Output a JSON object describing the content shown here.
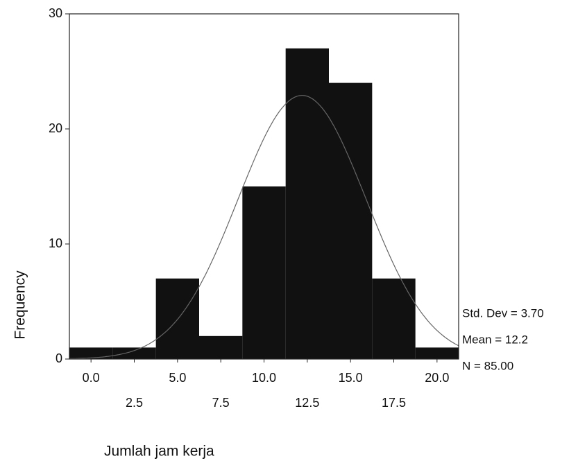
{
  "chart_data": {
    "type": "histogram",
    "x_label": "Jumlah jam kerja",
    "y_label": "Frequency",
    "bins": [
      -1.25,
      1.25,
      3.75,
      6.25,
      8.75,
      11.25,
      13.75,
      16.25,
      18.75,
      21.25
    ],
    "values": [
      1,
      1,
      7,
      2,
      15,
      27,
      24,
      7,
      1
    ],
    "color": "#111111",
    "xlim": [
      -1.25,
      21.25
    ],
    "xticks": [
      {
        "value": 0,
        "label": "0.0"
      },
      2.5,
      {
        "value": 5,
        "label": "5.0"
      },
      7.5,
      {
        "value": 10,
        "label": "10.0"
      },
      12.5,
      {
        "value": 15,
        "label": "15.0"
      },
      17.5,
      {
        "value": 20,
        "label": "20.0"
      }
    ],
    "ylim": [
      0,
      30
    ],
    "yticks": [
      0,
      10,
      20,
      30
    ],
    "fit": {
      "std_dev": 3.7,
      "mean": 12.2,
      "n": 85
    },
    "annotations": [
      "Std. Dev = 3.70",
      "Mean = 12.2",
      "N = 85.00"
    ]
  }
}
